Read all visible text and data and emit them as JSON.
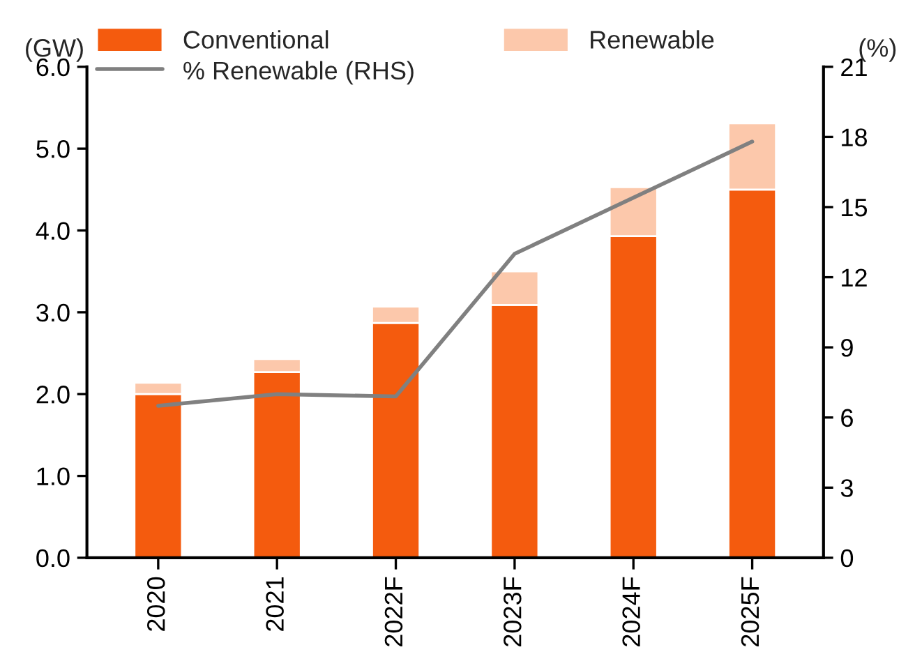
{
  "chart_data": {
    "type": "bar",
    "stacked": true,
    "ylabel": "(GW)",
    "y2label": "(%)",
    "categories": [
      "2020",
      "2021",
      "2022F",
      "2023F",
      "2024F",
      "2025F"
    ],
    "series": [
      {
        "name": "Conventional",
        "color": "#f45b0e",
        "values": [
          2.0,
          2.27,
          2.87,
          3.09,
          3.93,
          4.5
        ]
      },
      {
        "name": "Renewable",
        "color": "#fcc8ab",
        "values": [
          0.14,
          0.16,
          0.2,
          0.41,
          0.6,
          0.81
        ]
      },
      {
        "name": "% Renewable (RHS)",
        "type": "line",
        "axis": "y2",
        "color": "#808080",
        "values": [
          6.5,
          7.0,
          6.9,
          13.0,
          15.4,
          17.8
        ]
      }
    ],
    "ylim": [
      0,
      6
    ],
    "yticks": [
      {
        "value": 0,
        "label": "0.0"
      },
      {
        "value": 1,
        "label": "1.0"
      },
      {
        "value": 2,
        "label": "2.0"
      },
      {
        "value": 3,
        "label": "3.0"
      },
      {
        "value": 4,
        "label": "4.0"
      },
      {
        "value": 5,
        "label": "5.0"
      },
      {
        "value": 6,
        "label": "6.0"
      }
    ],
    "y2lim": [
      0,
      21
    ],
    "y2ticks": [
      0,
      3,
      6,
      9,
      12,
      15,
      18,
      21
    ],
    "grid": false,
    "legend": "top left",
    "marker": "none",
    "line_style": "solid"
  }
}
